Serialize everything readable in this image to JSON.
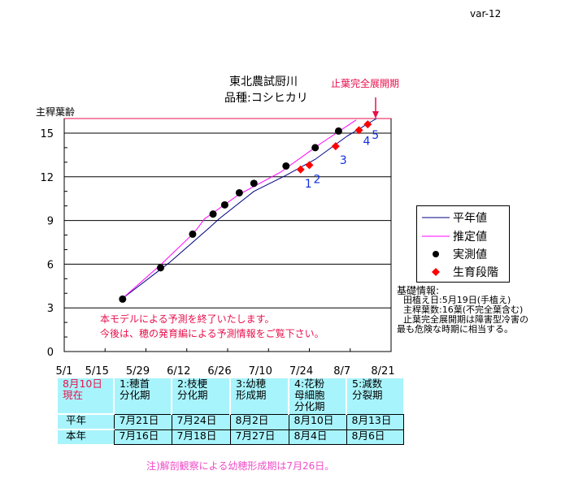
{
  "version_label": "var-12",
  "title": {
    "line1": "東北農試厨川",
    "line2": "品種:コシヒカリ"
  },
  "flag_leaf_label": "止葉完全展開期",
  "chart_data": {
    "type": "line",
    "ylabel": "主稈葉齢",
    "ylim": [
      0,
      16
    ],
    "yticks": [
      0,
      3,
      6,
      9,
      12,
      15
    ],
    "xlim": [
      "5/1",
      "8/21"
    ],
    "xticks": [
      "5/1",
      "5/15",
      "5/29",
      "6/12",
      "6/26",
      "7/10",
      "7/24",
      "8/7",
      "8/21"
    ],
    "grid": true,
    "legend_position": "right",
    "series": [
      {
        "name": "平年値",
        "type": "line",
        "color": "#000080",
        "points": [
          [
            "5/21",
            3.65
          ],
          [
            "6/6",
            6.1
          ],
          [
            "6/20",
            8.55
          ],
          [
            "6/23",
            9.1
          ],
          [
            "7/5",
            11.0
          ],
          [
            "7/16",
            12.1
          ],
          [
            "7/26",
            13.2
          ],
          [
            "8/6",
            14.8
          ],
          [
            "8/16",
            16.2
          ]
        ]
      },
      {
        "name": "推定値",
        "type": "line",
        "color": "#ff00ff",
        "points": [
          [
            "5/21",
            3.65
          ],
          [
            "6/3",
            5.95
          ],
          [
            "6/14",
            8.06
          ],
          [
            "6/16",
            8.55
          ],
          [
            "6/18",
            9.1
          ],
          [
            "6/30",
            10.8
          ],
          [
            "7/14",
            12.3
          ],
          [
            "7/28",
            14.3
          ],
          [
            "8/9",
            15.9
          ]
        ]
      },
      {
        "name": "実測値",
        "type": "scatter",
        "color": "#000000",
        "points": [
          [
            "5/21",
            3.6
          ],
          [
            "6/3",
            5.75
          ],
          [
            "6/14",
            8.06
          ],
          [
            "6/21",
            9.44
          ],
          [
            "6/25",
            10.07
          ],
          [
            "6/30",
            10.9
          ],
          [
            "7/5",
            11.55
          ],
          [
            "7/16",
            12.74
          ],
          [
            "7/26",
            14.0
          ],
          [
            "8/3",
            15.14
          ]
        ]
      },
      {
        "name": "生育段階",
        "type": "scatter",
        "color": "#ff0000",
        "points": [
          [
            "7/21",
            12.5,
            "1"
          ],
          [
            "7/24",
            12.8,
            "2"
          ],
          [
            "8/2",
            14.1,
            "3"
          ],
          [
            "8/10",
            15.2,
            "4"
          ],
          [
            "8/13",
            15.6,
            "5"
          ]
        ]
      }
    ],
    "annotations": [
      "本モデルによる予測を終了いたします。",
      "今後は、穂の発育編による予測情報をご覧下さい。"
    ]
  },
  "info": {
    "heading": "基礎情報:",
    "lines": [
      "田植え日:5月19日(手植え)",
      "主稈葉数:16葉(不完全葉含む)",
      "止葉完全展開期は障害型冷害の",
      "最も危険な時期に相当する。"
    ]
  },
  "table": {
    "corner": [
      "8月10日",
      "現在"
    ],
    "headers": [
      [
        "1:穂首",
        "分化期"
      ],
      [
        "2:枝梗",
        "分化期"
      ],
      [
        "3:幼穂",
        "形成期"
      ],
      [
        "4:花粉",
        "母細胞",
        "分化期"
      ],
      [
        "5:減数",
        "分裂期"
      ]
    ],
    "rows": [
      {
        "label": "平年",
        "values": [
          "7月21日",
          "7月24日",
          "8月2日",
          "8月10日",
          "8月13日"
        ]
      },
      {
        "label": "本年",
        "values": [
          "7月16日",
          "7月18日",
          "7月27日",
          "8月4日",
          "8月6日"
        ]
      }
    ]
  },
  "note": "注)解剖観察による幼穂形成期は7月26日。"
}
